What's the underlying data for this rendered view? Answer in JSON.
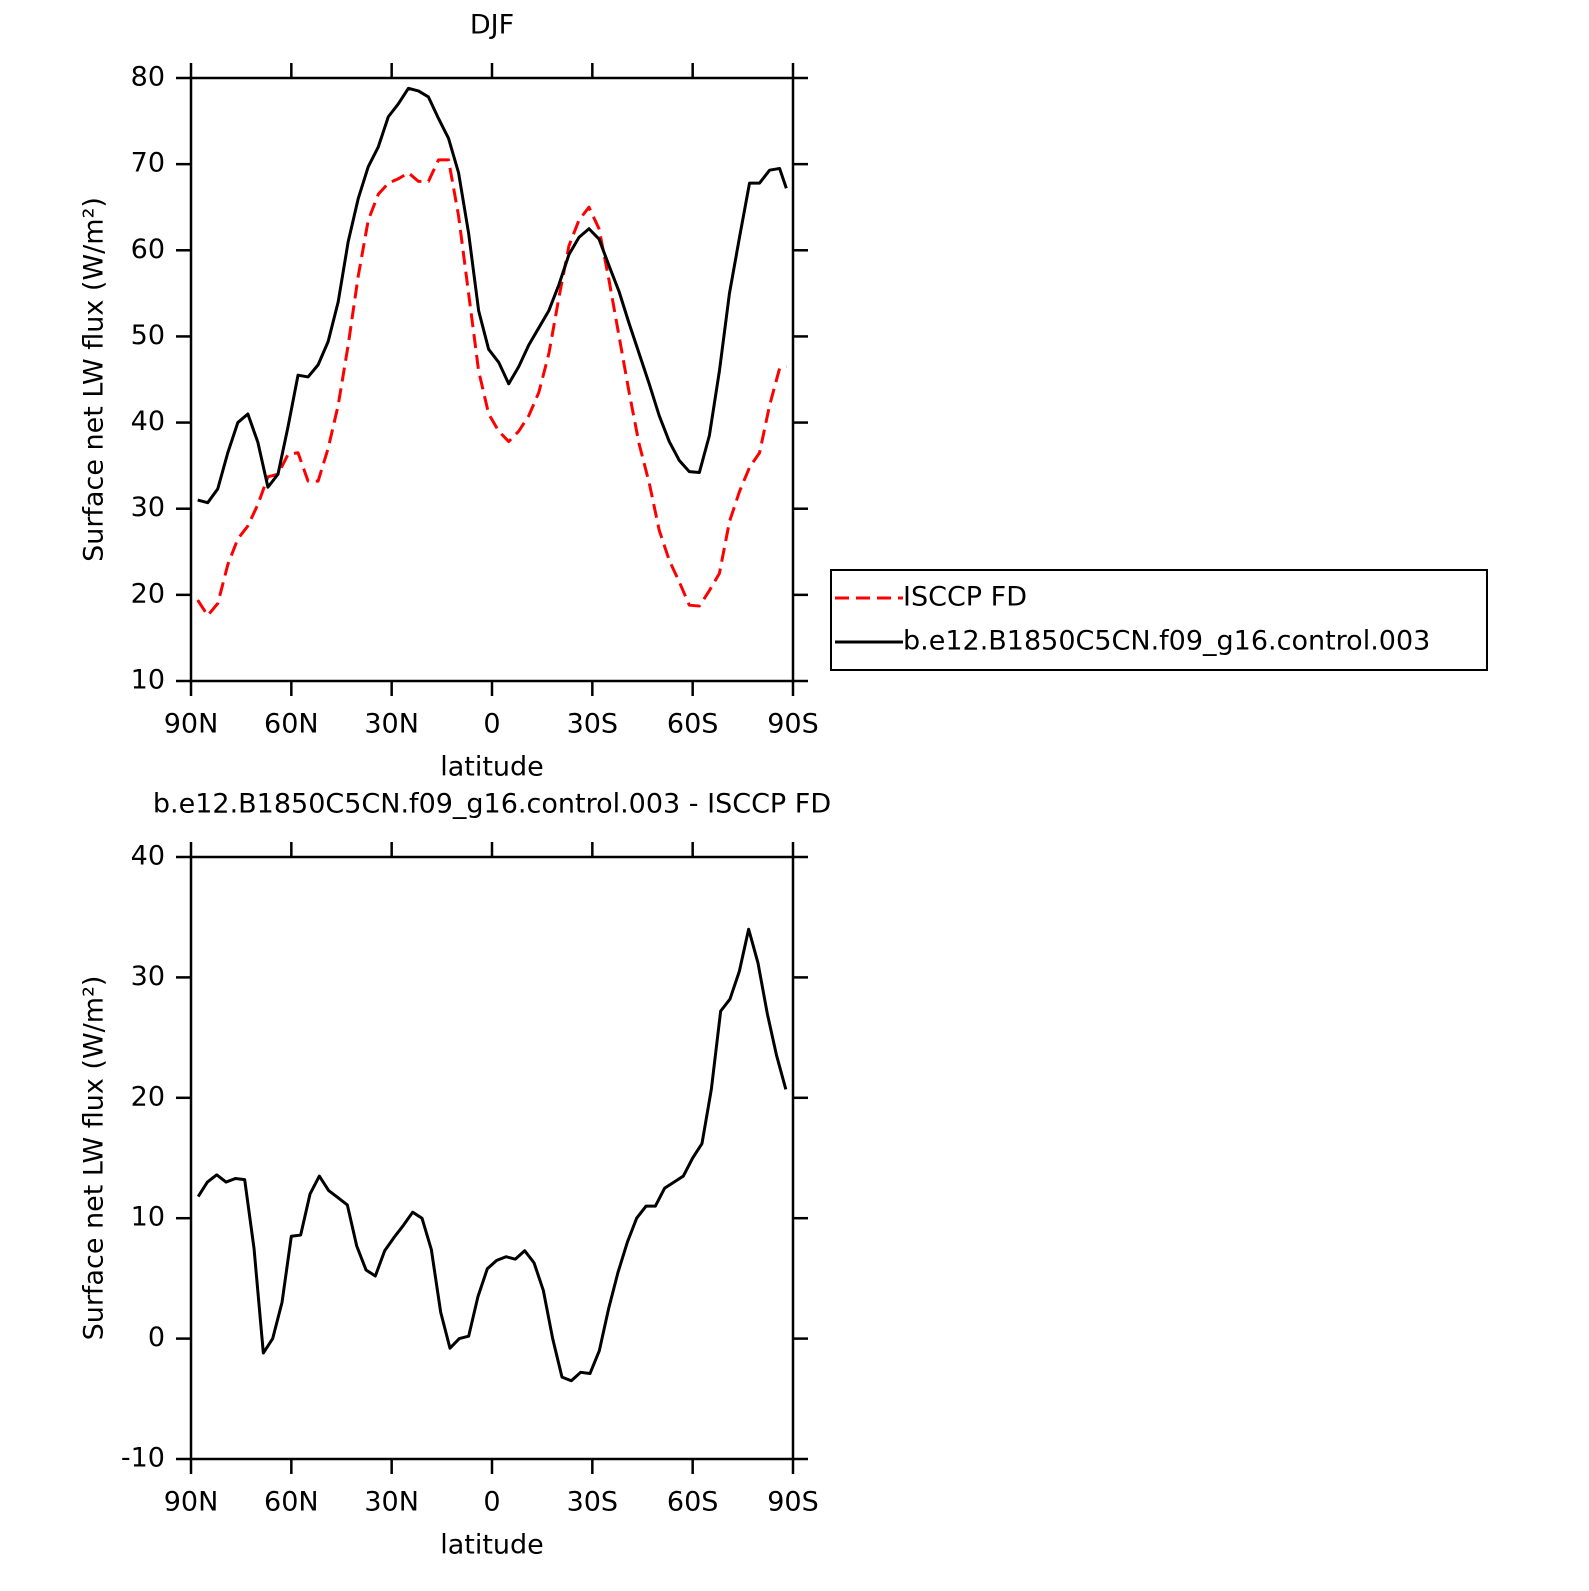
{
  "chart_data": [
    {
      "type": "line",
      "title": "DJF",
      "x_label": "latitude",
      "y_label": "Surface net LW flux (W/m²)",
      "x": [
        88,
        85,
        82,
        79,
        76,
        73,
        70,
        67,
        64,
        61,
        58,
        55,
        52,
        49,
        46,
        43,
        40,
        37,
        34,
        31,
        28,
        25,
        22,
        19,
        16,
        13,
        10,
        7,
        4,
        1,
        -2,
        -5,
        -8,
        -11,
        -14,
        -17,
        -20,
        -23,
        -26,
        -29,
        -32,
        -35,
        -38,
        -41,
        -44,
        -47,
        -50,
        -53,
        -56,
        -59,
        -62,
        -65,
        -68,
        -71,
        -74,
        -77,
        -80,
        -83,
        -86,
        -88
      ],
      "series": [
        {
          "name": "ISCCP FD",
          "color": "#ff0000",
          "line_style": "dashed",
          "values": [
            19.4,
            17.6,
            19,
            23.5,
            26.5,
            28,
            30.5,
            33.7,
            34,
            36.3,
            36.5,
            33.2,
            33.2,
            37,
            42,
            49,
            57,
            63.5,
            66.5,
            67.8,
            68.3,
            69,
            68,
            68,
            70.5,
            70.5,
            64,
            55,
            46,
            41,
            39,
            37.8,
            39,
            40.8,
            43.5,
            48,
            54.5,
            60.5,
            63.5,
            65,
            62.5,
            56.5,
            50,
            43.5,
            37.5,
            33,
            27.5,
            24,
            21.5,
            18.8,
            18.7,
            20.5,
            22.5,
            28.5,
            32,
            34.8,
            36.5,
            42,
            46.3,
            46.5
          ]
        },
        {
          "name": "b.e12.B1850C5CN.f09_g16.control.003",
          "color": "#000000",
          "line_style": "solid",
          "values": [
            31,
            30.7,
            32.3,
            36.5,
            40,
            41,
            37.7,
            32.5,
            34,
            39.5,
            45.5,
            45.3,
            46.7,
            49.4,
            54,
            61,
            66,
            69.7,
            72,
            75.5,
            77,
            78.8,
            78.5,
            77.8,
            75.3,
            73,
            69,
            62,
            53,
            48.5,
            47,
            44.5,
            46.5,
            49,
            51,
            53,
            56,
            59.5,
            61.5,
            62.5,
            61.3,
            58.2,
            55.2,
            51.5,
            48,
            44.5,
            40.8,
            37.8,
            35.6,
            34.3,
            34.2,
            38.5,
            46,
            55,
            61.5,
            67.8,
            67.8,
            69.3,
            69.5,
            67.2
          ]
        }
      ],
      "xlim": [
        90,
        -90
      ],
      "xticks": [
        {
          "value": 90,
          "label": "90N"
        },
        {
          "value": 60,
          "label": "60N"
        },
        {
          "value": 30,
          "label": "30N"
        },
        0,
        {
          "value": -30,
          "label": "30S"
        },
        {
          "value": -60,
          "label": "60S"
        },
        {
          "value": -90,
          "label": "90S"
        }
      ],
      "ylim": [
        10,
        80
      ],
      "yticks": [
        10,
        20,
        30,
        40,
        50,
        60,
        70,
        80
      ],
      "legend": "outside-right"
    },
    {
      "type": "line",
      "title": "b.e12.B1850C5CN.f09_g16.control.003 - ISCCP FD",
      "x_label": "latitude",
      "y_label": "Surface net LW flux (W/m²)",
      "x": [
        87.86,
        85.1,
        82.31,
        79.53,
        76.74,
        73.95,
        71.16,
        68.37,
        65.58,
        62.79,
        60,
        57.21,
        54.42,
        51.63,
        48.84,
        46.04,
        43.25,
        40.46,
        37.67,
        34.88,
        32.09,
        29.3,
        26.51,
        23.72,
        20.93,
        18.14,
        15.35,
        12.56,
        9.77,
        6.98,
        4.19,
        1.4,
        -1.4,
        -4.19,
        -6.98,
        -9.77,
        -12.56,
        -15.35,
        -18.14,
        -20.93,
        -23.72,
        -26.51,
        -29.3,
        -32.09,
        -34.88,
        -37.67,
        -40.46,
        -43.25,
        -46.04,
        -48.84,
        -51.63,
        -54.42,
        -57.21,
        -60,
        -62.79,
        -65.58,
        -68.37,
        -71.16,
        -73.95,
        -76.74,
        -79.53,
        -82.31,
        -85.1,
        -87.86
      ],
      "series": [
        {
          "color": "#000000",
          "line_style": "solid",
          "values": [
            11.8,
            13,
            13.6,
            13,
            13.3,
            13.2,
            7.5,
            -1.2,
            0,
            3,
            8.5,
            8.6,
            12,
            13.5,
            12.3,
            11.7,
            11.1,
            7.7,
            5.7,
            5.2,
            7.3,
            8.4,
            9.4,
            10.5,
            10,
            7.4,
            2.2,
            -0.8,
            0,
            0.2,
            3.5,
            5.8,
            6.5,
            6.8,
            6.6,
            7.3,
            6.3,
            4,
            0,
            -3.2,
            -3.5,
            -2.8,
            -2.9,
            -1,
            2.5,
            5.5,
            8,
            10,
            11,
            11,
            12.5,
            13,
            13.5,
            15,
            16.2,
            20.7,
            27.2,
            28.2,
            30.5,
            34,
            31.2,
            27,
            23.5,
            20.7
          ]
        }
      ],
      "xlim": [
        90,
        -90
      ],
      "xticks": [
        {
          "value": 90,
          "label": "90N"
        },
        {
          "value": 60,
          "label": "60N"
        },
        {
          "value": 30,
          "label": "30N"
        },
        0,
        {
          "value": -30,
          "label": "30S"
        },
        {
          "value": -60,
          "label": "60S"
        },
        {
          "value": -90,
          "label": "90S"
        }
      ],
      "ylim": [
        -10,
        40
      ],
      "yticks": [
        -10,
        0,
        10,
        20,
        30,
        40
      ]
    }
  ]
}
